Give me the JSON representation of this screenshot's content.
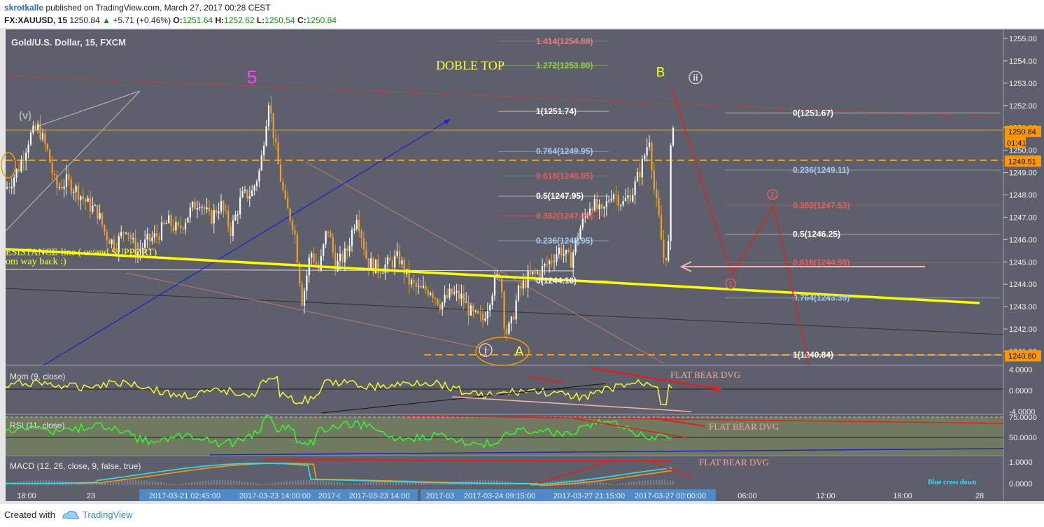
{
  "header": {
    "user": "skrotkalle",
    "published": "published on TradingView.com, March 27, 2017 00:28 CEST",
    "symbol": "FX:XAUUSD, 15",
    "last": "1250.84",
    "change": "+5.71 (+0.46%)",
    "o_label": "O:",
    "o": "1251.64",
    "h_label": "H:",
    "h": "1252.62",
    "l_label": "L:",
    "l": "1250.54",
    "c_label": "C:",
    "c": "1250.84"
  },
  "footer": {
    "created": "Created with",
    "brand": "TradingView"
  },
  "colors": {
    "background": "#5d606b",
    "candle_up": "#ffffff",
    "candle_down": "#f0a030",
    "support_line": "#ffff00",
    "trend_line": "#2020d0",
    "orange_dash": "#ff9800",
    "mom": "#ffff33",
    "rsi": "#33ff33",
    "macd": "#33ddee",
    "signal": "#ff9800",
    "red_arrow": "#ff2020"
  },
  "chart_data": {
    "type": "candlestick",
    "title": "Gold/U.S. Dollar, 15, FXCM",
    "y_ticks": [
      "1255.00",
      "1254.00",
      "1253.00",
      "1252.00",
      "1251.00",
      "1250.00",
      "1249.00",
      "1248.00",
      "1247.00",
      "1246.00",
      "1245.00",
      "1244.00",
      "1243.00",
      "1242.00",
      "1241.00"
    ],
    "ylim": [
      1240.5,
      1255.3
    ],
    "x_ticks": [
      "18:00",
      "23",
      "2017-03-21 02:45:00",
      "2017-03-23 14:00:00",
      "2017-03-2",
      "2017-03-23 14:00",
      "2017-03-2",
      "2017-03-24 09:15:00",
      "2017-03-27 21:15:00",
      "2017-03-27 00:00:00",
      "06:00",
      "12:00",
      "18:00",
      "28"
    ],
    "price_tags": [
      {
        "value": 1250.84,
        "label": "1250.84"
      },
      {
        "value": 1249.51,
        "label": "1249.51"
      },
      {
        "value": 1240.8,
        "label": "1240.80"
      }
    ],
    "countdown": "01:41",
    "close_path": [
      [
        0,
        1248.0
      ],
      [
        14,
        1248.5
      ],
      [
        28,
        1249.3
      ],
      [
        42,
        1250.6
      ],
      [
        55,
        1251.0
      ],
      [
        68,
        1249.9
      ],
      [
        80,
        1248.3
      ],
      [
        95,
        1248.6
      ],
      [
        110,
        1248.2
      ],
      [
        125,
        1247.6
      ],
      [
        140,
        1247.2
      ],
      [
        150,
        1246.3
      ],
      [
        165,
        1245.7
      ],
      [
        180,
        1246.6
      ],
      [
        195,
        1245.4
      ],
      [
        210,
        1245.9
      ],
      [
        225,
        1246.2
      ],
      [
        240,
        1246.8
      ],
      [
        255,
        1246.4
      ],
      [
        270,
        1247.2
      ],
      [
        285,
        1247.8
      ],
      [
        300,
        1246.9
      ],
      [
        315,
        1247.6
      ],
      [
        330,
        1246.4
      ],
      [
        345,
        1247.9
      ],
      [
        360,
        1248.1
      ],
      [
        372,
        1249.2
      ],
      [
        384,
        1252.3
      ],
      [
        396,
        1249.6
      ],
      [
        408,
        1247.5
      ],
      [
        420,
        1246.6
      ],
      [
        432,
        1243.2
      ],
      [
        444,
        1245.5
      ],
      [
        456,
        1244.6
      ],
      [
        468,
        1246.6
      ],
      [
        480,
        1244.8
      ],
      [
        495,
        1245.4
      ],
      [
        510,
        1247.2
      ],
      [
        525,
        1245.0
      ],
      [
        540,
        1244.7
      ],
      [
        555,
        1244.9
      ],
      [
        570,
        1245.2
      ],
      [
        585,
        1244.1
      ],
      [
        600,
        1243.7
      ],
      [
        615,
        1243.8
      ],
      [
        630,
        1243.1
      ],
      [
        645,
        1243.6
      ],
      [
        660,
        1243.4
      ],
      [
        675,
        1242.6
      ],
      [
        690,
        1242.4
      ],
      [
        705,
        1243.9
      ],
      [
        715,
        1244.6
      ],
      [
        722,
        1241.8
      ],
      [
        730,
        1242.1
      ],
      [
        740,
        1243.6
      ],
      [
        755,
        1244.3
      ],
      [
        770,
        1244.5
      ],
      [
        785,
        1245.0
      ],
      [
        800,
        1245.6
      ],
      [
        815,
        1245.0
      ],
      [
        830,
        1246.6
      ],
      [
        845,
        1247.7
      ],
      [
        860,
        1247.1
      ],
      [
        875,
        1248.2
      ],
      [
        890,
        1247.6
      ],
      [
        905,
        1248.2
      ],
      [
        918,
        1249.4
      ],
      [
        928,
        1250.6
      ],
      [
        935,
        1248.2
      ],
      [
        942,
        1246.8
      ],
      [
        948,
        1245.2
      ],
      [
        955,
        1245.5
      ],
      [
        960,
        1251.6
      ],
      [
        965,
        1250.84
      ]
    ],
    "annotations": [
      {
        "text": "DOBLE TOP",
        "x": 672,
        "price": 1253.6,
        "color": "#ffff33"
      },
      {
        "text": "5",
        "x": 360,
        "price": 1253.0,
        "color": "#ff44ff"
      },
      {
        "text": "B",
        "x": 944,
        "price": 1253.3,
        "color": "#ffff33"
      },
      {
        "text": "ii",
        "x": 994,
        "price": 1253.1,
        "color": "#dddddd"
      },
      {
        "text": "(v)",
        "x": 36,
        "price": 1251.4,
        "color": "#aaaaaa"
      },
      {
        "text": "A",
        "x": 742,
        "price": 1240.8,
        "color": "#ffff33"
      },
      {
        "text": "i",
        "x": 694,
        "price": 1240.9,
        "color": "#dddddd"
      },
      {
        "text": "ESISTANCE-line ( or/and SUPPORT)",
        "x": 8,
        "price": 1245.3,
        "color": "#ffff33"
      },
      {
        "text": "om way back  :)",
        "x": 8,
        "price": 1244.9,
        "color": "#ffff33"
      },
      {
        "text": "1",
        "x": 1044,
        "price": 1243.9,
        "color": "#ff6060"
      },
      {
        "text": "2",
        "x": 1104,
        "price": 1247.9,
        "color": "#ff6060"
      }
    ],
    "fib_left": [
      {
        "label": "1.414(1254.88)",
        "price": 1254.88,
        "color": "#e08080"
      },
      {
        "label": "1.272(1253.80)",
        "price": 1253.8,
        "color": "#90d040"
      },
      {
        "label": "1(1251.74)",
        "price": 1251.74,
        "color": "#ffffff"
      },
      {
        "label": "0.764(1249.95)",
        "price": 1249.95,
        "color": "#a8c8f0"
      },
      {
        "label": "0.618(1248.85)",
        "price": 1248.85,
        "color": "#e06060"
      },
      {
        "label": "0.5(1247.95)",
        "price": 1247.95,
        "color": "#ffffff"
      },
      {
        "label": "0.382(1247.06)",
        "price": 1247.06,
        "color": "#e06060"
      },
      {
        "label": "0.236(1245.95)",
        "price": 1245.95,
        "color": "#a8c8f0"
      },
      {
        "label": "0(1244.16)",
        "price": 1244.16,
        "color": "#ffffff"
      }
    ],
    "fib_right": [
      {
        "label": "0(1251.67)",
        "price": 1251.67,
        "color": "#ffffff"
      },
      {
        "label": "0.236(1249.11)",
        "price": 1249.11,
        "color": "#a8c8f0"
      },
      {
        "label": "0.382(1247.53)",
        "price": 1247.53,
        "color": "#e06060"
      },
      {
        "label": "0.5(1246.25)",
        "price": 1246.25,
        "color": "#ffffff"
      },
      {
        "label": "0.618(1244.98)",
        "price": 1244.98,
        "color": "#e06060"
      },
      {
        "label": "0.764(1243.39)",
        "price": 1243.39,
        "color": "#a8c8f0"
      },
      {
        "label": "1(1240.84)",
        "price": 1240.84,
        "color": "#ffffff"
      }
    ],
    "panes": [
      {
        "name": "Mom (9, close)",
        "ticks": [
          "4.0000",
          "0.0000",
          "-4.0000"
        ],
        "note": "FLAT BEAR DVG"
      },
      {
        "name": "RSI (11, close)",
        "ticks": [
          "75.0000",
          "50.0000"
        ],
        "note": "FLAT BEAR DVG"
      },
      {
        "name": "MACD (12, 26, close, 9, false, true)",
        "ticks": [
          "1.0000",
          "0.0000"
        ],
        "note": "FLAT BEAR DVG",
        "extra": "Blue cross down"
      }
    ]
  }
}
